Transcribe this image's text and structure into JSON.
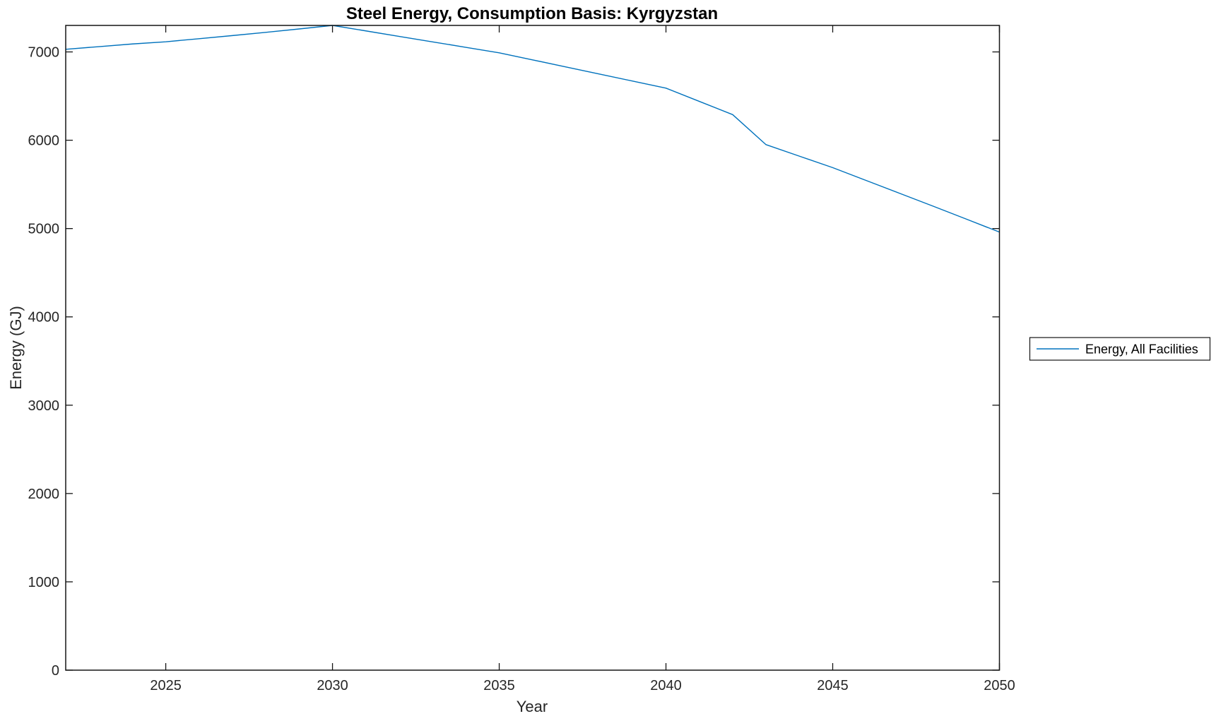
{
  "figure": {
    "background": "#ffffff",
    "axes_color": "#151515",
    "tick_text_color": "#262626",
    "title_color": "#000000",
    "accent_blue": "#0072BD"
  },
  "chart_data": {
    "type": "line",
    "title": "Steel Energy, Consumption Basis: Kyrgyzstan",
    "xlabel": "Year",
    "ylabel": "Energy (GJ)",
    "xlim": [
      2022,
      2050
    ],
    "ylim": [
      0,
      7300
    ],
    "xticks": [
      2025,
      2030,
      2035,
      2040,
      2045,
      2050
    ],
    "yticks": [
      0,
      1000,
      2000,
      3000,
      4000,
      5000,
      6000,
      7000
    ],
    "grid": false,
    "legend": {
      "position": "right-outside-middle",
      "border": true,
      "entries": [
        {
          "label": "Energy, All Facilities",
          "color": "#0072BD"
        }
      ]
    },
    "series": [
      {
        "name": "Energy, All Facilities",
        "color": "#0072BD",
        "x": [
          2022,
          2023,
          2024,
          2025,
          2026,
          2027,
          2028,
          2029,
          2030,
          2031,
          2032,
          2033,
          2034,
          2035,
          2036,
          2037,
          2038,
          2039,
          2040,
          2041,
          2042,
          2043,
          2044,
          2045,
          2046,
          2047,
          2048,
          2049,
          2050
        ],
        "values": [
          7030,
          7060,
          7090,
          7115,
          7150,
          7185,
          7222,
          7260,
          7300,
          7238,
          7176,
          7114,
          7052,
          6990,
          6910,
          6830,
          6750,
          6670,
          6590,
          6440,
          6290,
          5950,
          5820,
          5690,
          5545,
          5400,
          5255,
          5108,
          4960
        ]
      }
    ]
  }
}
